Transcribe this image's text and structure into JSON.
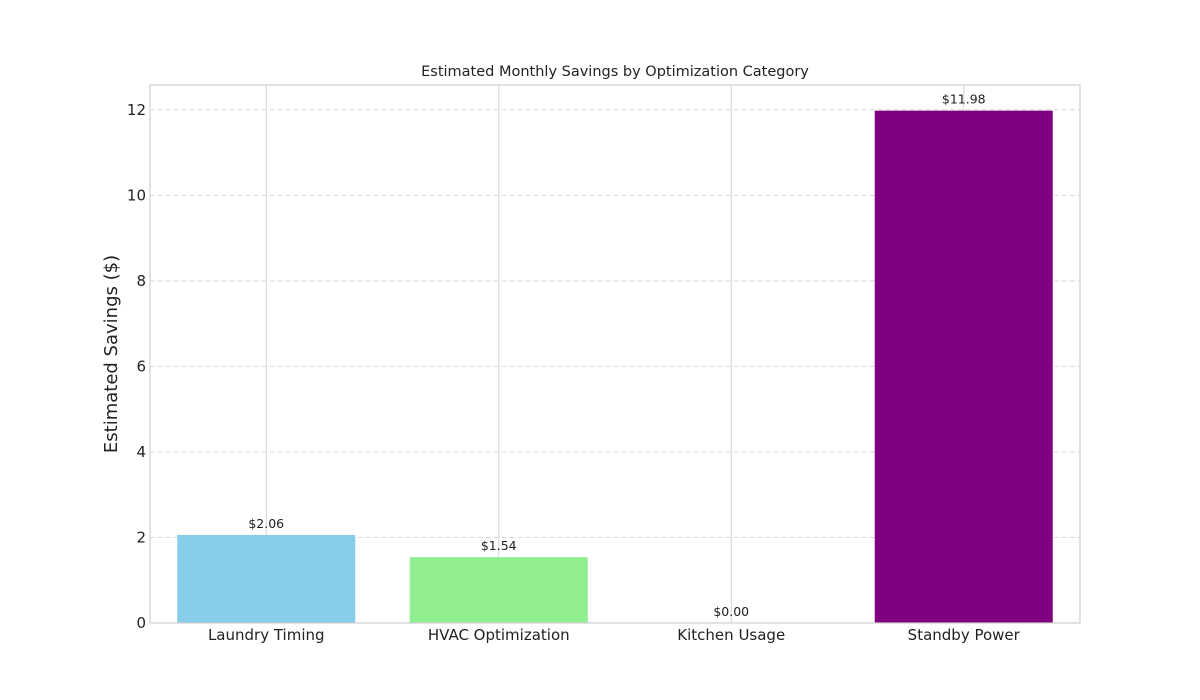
{
  "chart_data": {
    "type": "bar",
    "title": "Estimated Monthly Savings by Optimization Category",
    "xlabel": "",
    "ylabel": "Estimated Savings ($)",
    "categories": [
      "Laundry Timing",
      "HVAC Optimization",
      "Kitchen Usage",
      "Standby Power"
    ],
    "values": [
      2.06,
      1.54,
      0.0,
      11.98
    ],
    "data_labels": [
      "$2.06",
      "$1.54",
      "$0.00",
      "$11.98"
    ],
    "colors": [
      "#87ceeb",
      "#90ee90",
      "#ff7f50",
      "#800080"
    ],
    "yticks": [
      "0",
      "2",
      "4",
      "6",
      "8",
      "10",
      "12"
    ],
    "ylim": [
      0,
      12.58
    ],
    "grid": true,
    "legend": "none"
  }
}
